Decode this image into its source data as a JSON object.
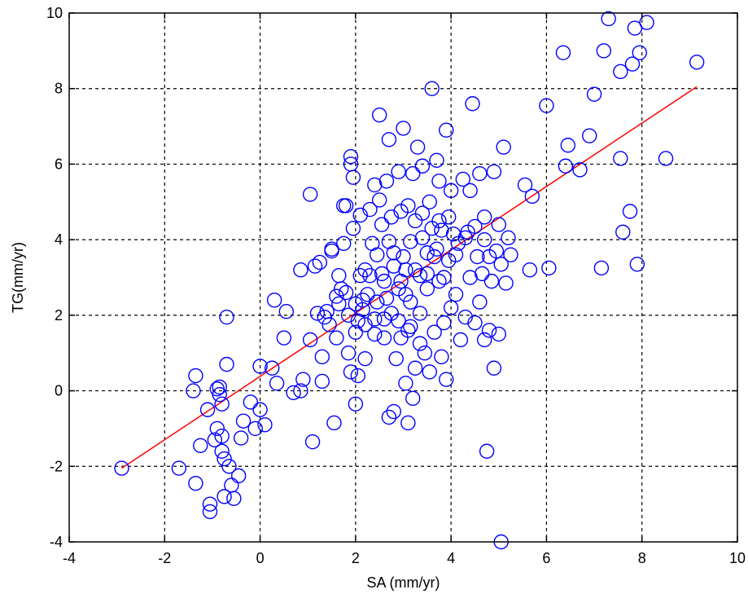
{
  "chart_data": {
    "type": "scatter",
    "xlabel": "SA (mm/yr)",
    "ylabel": "TG(mm/yr)",
    "xlim": [
      -4,
      10
    ],
    "ylim": [
      -4,
      10
    ],
    "xticks": [
      "-4",
      "-2",
      "0",
      "2",
      "4",
      "6",
      "8",
      "10"
    ],
    "yticks": [
      "-4",
      "-2",
      "0",
      "2",
      "4",
      "6",
      "8",
      "10"
    ],
    "grid": true,
    "colors": {
      "marker": "#0000ff",
      "fit_line": "#ff0000",
      "grid": "#000000",
      "axes": "#000000"
    },
    "fit_line": {
      "x": [
        -2.9,
        9.15
      ],
      "y": [
        -2.05,
        8.05
      ]
    },
    "points": [
      [
        -2.9,
        -2.05
      ],
      [
        -1.7,
        -2.05
      ],
      [
        -1.35,
        -2.45
      ],
      [
        -1.35,
        0.4
      ],
      [
        -1.4,
        0.0
      ],
      [
        -1.25,
        -1.45
      ],
      [
        -1.1,
        -0.5
      ],
      [
        -1.05,
        -3.0
      ],
      [
        -1.05,
        -3.2
      ],
      [
        -0.95,
        -1.3
      ],
      [
        -0.9,
        -1.0
      ],
      [
        -0.9,
        0.05
      ],
      [
        -0.85,
        0.1
      ],
      [
        -0.85,
        -0.1
      ],
      [
        -0.8,
        -0.35
      ],
      [
        -0.8,
        -1.2
      ],
      [
        -0.8,
        -1.6
      ],
      [
        -0.75,
        -2.8
      ],
      [
        -0.75,
        -1.8
      ],
      [
        -0.7,
        0.7
      ],
      [
        -0.7,
        1.95
      ],
      [
        -0.65,
        -2.0
      ],
      [
        -0.6,
        -2.5
      ],
      [
        -0.55,
        -2.85
      ],
      [
        -0.45,
        -2.25
      ],
      [
        -0.4,
        -1.25
      ],
      [
        -0.35,
        -0.8
      ],
      [
        -0.2,
        -0.3
      ],
      [
        -0.1,
        -1.0
      ],
      [
        0.0,
        0.65
      ],
      [
        0.0,
        -0.5
      ],
      [
        0.1,
        -0.9
      ],
      [
        0.25,
        0.6
      ],
      [
        0.3,
        2.4
      ],
      [
        0.35,
        0.2
      ],
      [
        0.5,
        1.4
      ],
      [
        0.55,
        2.1
      ],
      [
        0.7,
        -0.05
      ],
      [
        0.85,
        0.0
      ],
      [
        0.85,
        3.2
      ],
      [
        0.9,
        0.3
      ],
      [
        1.05,
        1.35
      ],
      [
        1.05,
        5.2
      ],
      [
        1.1,
        -1.35
      ],
      [
        1.15,
        3.3
      ],
      [
        1.25,
        3.4
      ],
      [
        1.3,
        0.9
      ],
      [
        1.3,
        0.25
      ],
      [
        1.35,
        1.95
      ],
      [
        1.4,
        2.1
      ],
      [
        1.5,
        3.7
      ],
      [
        1.5,
        3.75
      ],
      [
        1.55,
        -0.85
      ],
      [
        1.6,
        2.5
      ],
      [
        1.6,
        1.4
      ],
      [
        1.65,
        3.05
      ],
      [
        1.7,
        2.7
      ],
      [
        1.75,
        3.9
      ],
      [
        1.75,
        4.9
      ],
      [
        1.8,
        4.9
      ],
      [
        1.85,
        2.0
      ],
      [
        1.85,
        1.0
      ],
      [
        1.9,
        0.5
      ],
      [
        1.9,
        6.2
      ],
      [
        1.9,
        6.0
      ],
      [
        1.95,
        5.65
      ],
      [
        1.95,
        4.3
      ],
      [
        2.0,
        2.3
      ],
      [
        2.0,
        -0.35
      ],
      [
        2.05,
        1.85
      ],
      [
        2.05,
        0.4
      ],
      [
        2.1,
        4.65
      ],
      [
        2.1,
        3.05
      ],
      [
        2.15,
        2.15
      ],
      [
        2.2,
        0.85
      ],
      [
        2.2,
        3.2
      ],
      [
        2.25,
        2.55
      ],
      [
        2.3,
        4.8
      ],
      [
        2.35,
        3.9
      ],
      [
        2.4,
        5.45
      ],
      [
        2.4,
        1.9
      ],
      [
        2.45,
        3.6
      ],
      [
        2.5,
        7.3
      ],
      [
        2.5,
        5.05
      ],
      [
        2.55,
        4.4
      ],
      [
        2.6,
        2.9
      ],
      [
        2.6,
        1.4
      ],
      [
        2.65,
        5.55
      ],
      [
        2.7,
        6.65
      ],
      [
        2.7,
        3.95
      ],
      [
        2.7,
        -0.7
      ],
      [
        2.75,
        2.05
      ],
      [
        2.75,
        4.6
      ],
      [
        2.8,
        3.3
      ],
      [
        2.8,
        -0.55
      ],
      [
        2.85,
        0.85
      ],
      [
        2.9,
        5.8
      ],
      [
        2.9,
        2.7
      ],
      [
        2.95,
        1.4
      ],
      [
        2.95,
        4.75
      ],
      [
        3.0,
        3.55
      ],
      [
        3.0,
        6.95
      ],
      [
        3.05,
        0.2
      ],
      [
        3.05,
        3.2
      ],
      [
        3.1,
        4.9
      ],
      [
        3.1,
        -0.85
      ],
      [
        3.15,
        1.7
      ],
      [
        3.15,
        2.35
      ],
      [
        3.2,
        -0.2
      ],
      [
        3.2,
        5.75
      ],
      [
        3.25,
        4.5
      ],
      [
        3.25,
        0.6
      ],
      [
        3.3,
        6.45
      ],
      [
        3.35,
        3.05
      ],
      [
        3.35,
        2.05
      ],
      [
        3.4,
        5.95
      ],
      [
        3.4,
        4.7
      ],
      [
        3.45,
        1.0
      ],
      [
        3.5,
        3.65
      ],
      [
        3.5,
        2.7
      ],
      [
        3.55,
        5.0
      ],
      [
        3.55,
        0.5
      ],
      [
        3.6,
        8.0
      ],
      [
        3.6,
        4.3
      ],
      [
        3.65,
        1.55
      ],
      [
        3.7,
        3.75
      ],
      [
        3.7,
        6.1
      ],
      [
        3.75,
        2.9
      ],
      [
        3.75,
        5.55
      ],
      [
        3.8,
        0.9
      ],
      [
        3.8,
        4.25
      ],
      [
        3.85,
        1.8
      ],
      [
        3.85,
        3.0
      ],
      [
        3.9,
        6.9
      ],
      [
        3.9,
        0.3
      ],
      [
        3.95,
        3.45
      ],
      [
        4.0,
        5.3
      ],
      [
        4.0,
        2.2
      ],
      [
        4.05,
        4.15
      ],
      [
        4.1,
        2.55
      ],
      [
        4.15,
        3.9
      ],
      [
        4.2,
        1.35
      ],
      [
        4.25,
        5.6
      ],
      [
        4.3,
        1.95
      ],
      [
        4.35,
        4.2
      ],
      [
        4.4,
        3.0
      ],
      [
        4.4,
        5.3
      ],
      [
        4.45,
        7.6
      ],
      [
        4.5,
        1.8
      ],
      [
        4.55,
        3.55
      ],
      [
        4.6,
        5.75
      ],
      [
        4.6,
        2.35
      ],
      [
        4.65,
        3.1
      ],
      [
        4.7,
        1.35
      ],
      [
        4.7,
        4.0
      ],
      [
        4.75,
        -1.6
      ],
      [
        4.8,
        3.55
      ],
      [
        4.8,
        1.6
      ],
      [
        4.85,
        2.9
      ],
      [
        4.9,
        5.8
      ],
      [
        4.9,
        0.6
      ],
      [
        4.95,
        3.7
      ],
      [
        5.0,
        4.4
      ],
      [
        5.0,
        1.5
      ],
      [
        5.05,
        3.35
      ],
      [
        5.1,
        6.45
      ],
      [
        5.15,
        2.85
      ],
      [
        5.2,
        4.05
      ],
      [
        5.25,
        3.6
      ],
      [
        5.05,
        -4.0
      ],
      [
        5.55,
        5.45
      ],
      [
        5.65,
        3.2
      ],
      [
        5.7,
        5.15
      ],
      [
        6.0,
        7.55
      ],
      [
        6.05,
        3.25
      ],
      [
        6.35,
        8.95
      ],
      [
        6.4,
        5.95
      ],
      [
        6.45,
        6.5
      ],
      [
        6.7,
        5.85
      ],
      [
        6.9,
        6.75
      ],
      [
        7.0,
        7.85
      ],
      [
        7.15,
        3.25
      ],
      [
        7.2,
        9.0
      ],
      [
        7.3,
        9.85
      ],
      [
        7.55,
        6.15
      ],
      [
        7.55,
        8.45
      ],
      [
        7.6,
        4.2
      ],
      [
        7.75,
        4.75
      ],
      [
        7.8,
        8.65
      ],
      [
        7.85,
        9.6
      ],
      [
        7.9,
        3.35
      ],
      [
        7.95,
        8.95
      ],
      [
        8.1,
        9.75
      ],
      [
        8.5,
        6.15
      ],
      [
        9.15,
        8.7
      ],
      [
        1.2,
        2.05
      ],
      [
        1.45,
        1.75
      ],
      [
        1.65,
        2.3
      ],
      [
        1.8,
        2.6
      ],
      [
        2.15,
        2.4
      ],
      [
        2.3,
        3.05
      ],
      [
        2.45,
        2.35
      ],
      [
        2.55,
        3.1
      ],
      [
        2.65,
        2.45
      ],
      [
        2.8,
        3.65
      ],
      [
        2.95,
        2.9
      ],
      [
        3.05,
        2.55
      ],
      [
        3.15,
        3.95
      ],
      [
        3.25,
        3.2
      ],
      [
        3.4,
        4.05
      ],
      [
        3.5,
        3.1
      ],
      [
        3.65,
        3.55
      ],
      [
        3.75,
        4.5
      ],
      [
        3.95,
        4.6
      ],
      [
        4.1,
        3.6
      ],
      [
        4.3,
        4.05
      ],
      [
        4.5,
        4.35
      ],
      [
        4.7,
        4.6
      ],
      [
        2.0,
        1.55
      ],
      [
        2.2,
        1.75
      ],
      [
        2.4,
        1.5
      ],
      [
        2.6,
        1.9
      ],
      [
        2.9,
        1.85
      ],
      [
        3.1,
        1.6
      ],
      [
        3.35,
        1.25
      ]
    ]
  }
}
